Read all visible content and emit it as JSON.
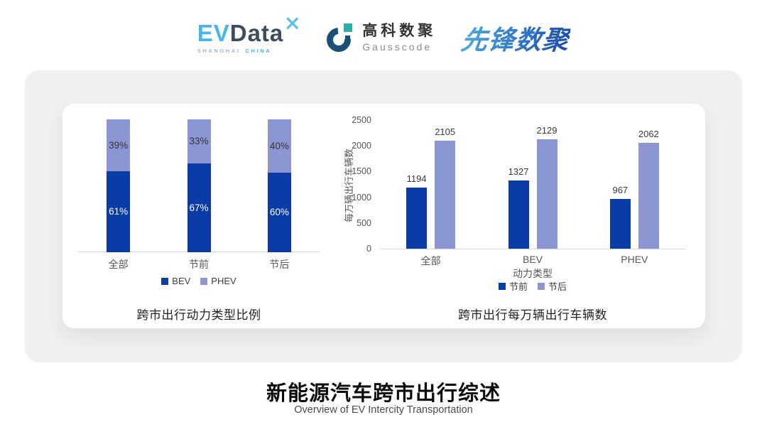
{
  "header": {
    "logos": [
      {
        "name": "evdata",
        "text_ev": "EV",
        "text_data": "Data",
        "sub_left": "SHANGHAI",
        "sub_right": "CHINA"
      },
      {
        "name": "gausscode",
        "cn": "高科数聚",
        "en": "Gausscode"
      },
      {
        "name": "xianfeng-shuju",
        "text": "先锋数聚"
      }
    ]
  },
  "colors": {
    "series_dark_blue": "#0A3CA8",
    "series_light_blue": "#8C96D3",
    "axis_line": "#D9D9D9",
    "card_bg": "#F0F0F1",
    "evdata_cyan": "#45B7E8",
    "evdata_slate": "#3E4D5E",
    "gauss_navy": "#1A5078",
    "gauss_teal": "#29AFA8",
    "xianfeng_blue_start": "#4AA7E0",
    "xianfeng_blue_end": "#1C50AE"
  },
  "chart_data": [
    {
      "type": "bar",
      "subtype": "stacked-100",
      "title": "跨市出行动力类型比例",
      "categories": [
        "全部",
        "节前",
        "节后"
      ],
      "series": [
        {
          "name": "BEV",
          "color": "#0A3CA8",
          "label_color": "#FFFFFF",
          "values": [
            61,
            67,
            60
          ],
          "value_labels": [
            "61%",
            "67%",
            "60%"
          ]
        },
        {
          "name": "PHEV",
          "color": "#8C96D3",
          "label_color": "#333333",
          "values": [
            39,
            33,
            40
          ],
          "value_labels": [
            "39%",
            "33%",
            "40%"
          ]
        }
      ],
      "xlabel": "",
      "ylabel": "",
      "ylim": [
        0,
        100
      ],
      "grid": false,
      "legend_position": "bottom"
    },
    {
      "type": "bar",
      "subtype": "grouped",
      "title": "跨市出行每万辆出行车辆数",
      "categories": [
        "全部",
        "BEV",
        "PHEV"
      ],
      "series": [
        {
          "name": "节前",
          "color": "#0A3CA8",
          "values": [
            1194,
            1327,
            967
          ]
        },
        {
          "name": "节后",
          "color": "#8C96D3",
          "values": [
            2105,
            2129,
            2062
          ]
        }
      ],
      "xlabel": "动力类型",
      "ylabel": "每万辆出行车辆数",
      "ylim": [
        0,
        2500
      ],
      "yticks": [
        0,
        500,
        1000,
        1500,
        2000,
        2500
      ],
      "grid": false,
      "legend_position": "bottom"
    }
  ],
  "footer": {
    "title": "新能源汽车跨市出行综述",
    "subtitle": "Overview of EV Intercity Transportation"
  }
}
